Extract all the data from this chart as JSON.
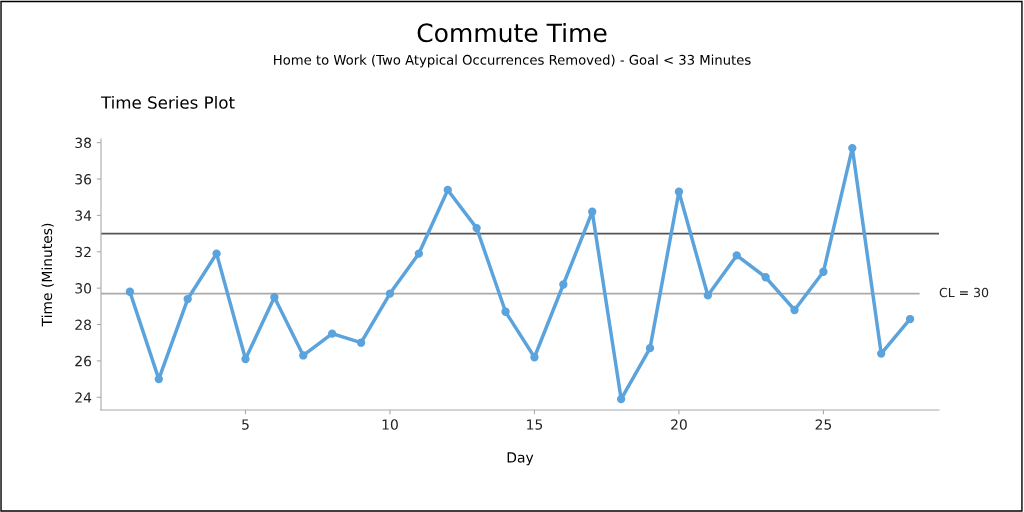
{
  "chart_data": {
    "type": "line",
    "title": "Commute Time",
    "subtitle": "Home to Work (Two Atypical Occurrences Removed) - Goal < 33 Minutes",
    "annotations": [
      "Time Series Plot"
    ],
    "xlabel": "Day",
    "ylabel": "Time (Minutes)",
    "x": [
      1,
      2,
      3,
      4,
      5,
      6,
      7,
      8,
      9,
      10,
      11,
      12,
      13,
      14,
      15,
      16,
      17,
      18,
      19,
      20,
      21,
      22,
      23,
      24,
      25,
      26,
      27,
      28
    ],
    "series": [
      {
        "color": "#5ba3dc",
        "values": [
          29.8,
          25.0,
          29.4,
          31.9,
          26.1,
          29.5,
          26.3,
          27.5,
          27.0,
          29.7,
          31.9,
          35.4,
          33.3,
          28.7,
          26.2,
          30.2,
          34.2,
          23.9,
          26.7,
          35.3,
          29.6,
          31.8,
          30.6,
          28.8,
          30.9,
          37.7,
          26.4,
          28.3
        ]
      }
    ],
    "xlim": [
      0,
      29
    ],
    "xticks": [
      5,
      10,
      15,
      20,
      25
    ],
    "ylim": [
      23.3,
      38.2
    ],
    "yticks": [
      24,
      26,
      28,
      30,
      32,
      34,
      36,
      38
    ],
    "ref_lines": [
      {
        "axis": "y",
        "value": 33,
        "label": null,
        "color": "#555555"
      },
      {
        "axis": "y",
        "value": 29.7,
        "label": "CL = 30",
        "color": "#aaaaaa"
      }
    ],
    "marker": "circle",
    "line_style": "solid",
    "grid": false,
    "legend": false
  }
}
